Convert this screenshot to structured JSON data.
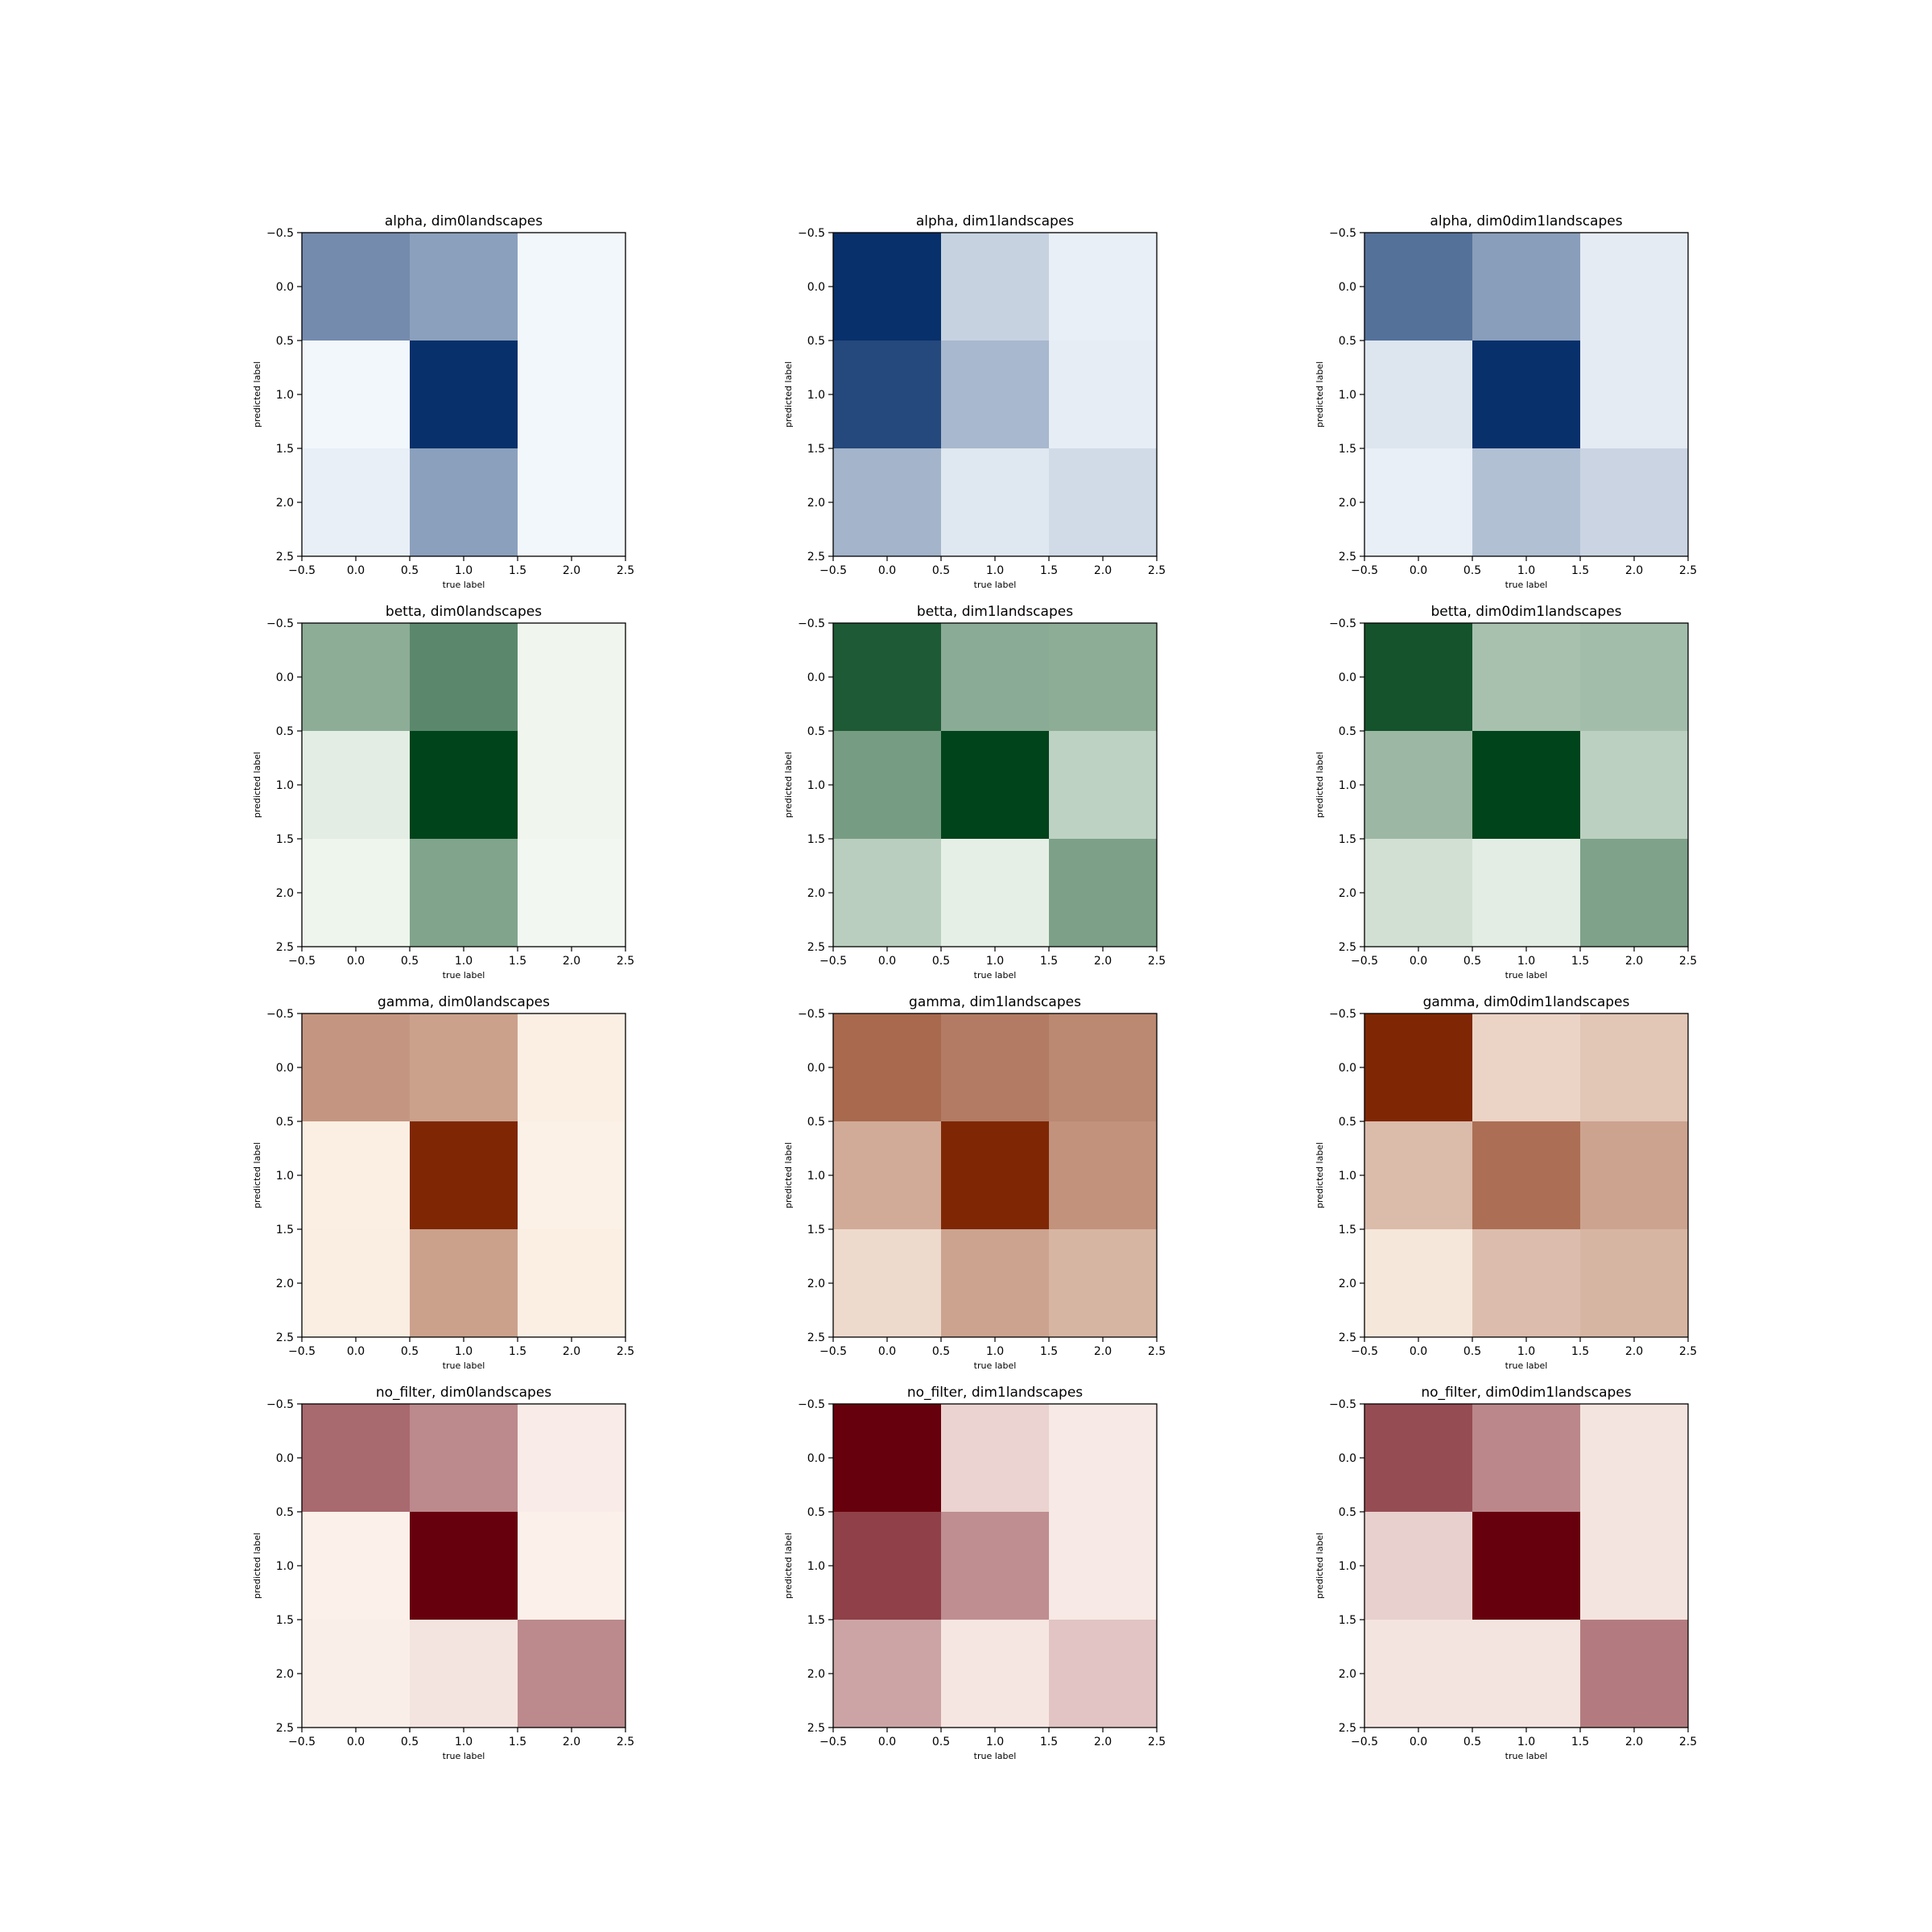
{
  "chart_data": {
    "type": "heatmap",
    "grid": false,
    "x_ticks": [
      "−0.5",
      "0.0",
      "0.5",
      "1.0",
      "1.5",
      "2.0",
      "2.5"
    ],
    "y_ticks": [
      "−0.5",
      "0.0",
      "0.5",
      "1.0",
      "1.5",
      "2.0",
      "2.5"
    ],
    "xlim": [
      -0.5,
      2.5
    ],
    "ylim": [
      2.5,
      -0.5
    ],
    "panels": [
      {
        "title": "alpha, dim0landscapes",
        "xlabel": "true label",
        "ylabel": "predicted label",
        "colormap": {
          "light": "#f7fbff",
          "dark": "#08306b"
        },
        "values": [
          [
            0.55,
            0.45,
            0.02
          ],
          [
            0.02,
            1.0,
            0.02
          ],
          [
            0.06,
            0.45,
            0.02
          ]
        ]
      },
      {
        "title": "alpha, dim1landscapes",
        "xlabel": "true label",
        "ylabel": "predicted label",
        "colormap": {
          "light": "#f7fbff",
          "dark": "#08306b"
        },
        "values": [
          [
            1.0,
            0.2,
            0.06
          ],
          [
            0.88,
            0.33,
            0.07
          ],
          [
            0.35,
            0.1,
            0.16
          ]
        ]
      },
      {
        "title": "alpha, dim0dim1landscapes",
        "xlabel": "true label",
        "ylabel": "predicted label",
        "colormap": {
          "light": "#f7fbff",
          "dark": "#08306b"
        },
        "values": [
          [
            0.68,
            0.46,
            0.08
          ],
          [
            0.11,
            1.0,
            0.08
          ],
          [
            0.06,
            0.29,
            0.19
          ]
        ]
      },
      {
        "title": "betta, dim0landscapes",
        "xlabel": "true label",
        "ylabel": "predicted label",
        "colormap": {
          "light": "#f7fcf5",
          "dark": "#00441b"
        },
        "values": [
          [
            0.43,
            0.63,
            0.03
          ],
          [
            0.08,
            1.0,
            0.03
          ],
          [
            0.04,
            0.48,
            0.02
          ]
        ]
      },
      {
        "title": "betta, dim1landscapes",
        "xlabel": "true label",
        "ylabel": "predicted label",
        "colormap": {
          "light": "#f7fcf5",
          "dark": "#00441b"
        },
        "values": [
          [
            0.88,
            0.44,
            0.43
          ],
          [
            0.52,
            1.0,
            0.23
          ],
          [
            0.25,
            0.07,
            0.5
          ]
        ]
      },
      {
        "title": "betta, dim0dim1landscapes",
        "xlabel": "true label",
        "ylabel": "predicted label",
        "colormap": {
          "light": "#f7fcf5",
          "dark": "#00441b"
        },
        "values": [
          [
            0.92,
            0.32,
            0.34
          ],
          [
            0.37,
            1.0,
            0.24
          ],
          [
            0.15,
            0.08,
            0.49
          ]
        ]
      },
      {
        "title": "gamma, dim0landscapes",
        "xlabel": "true label",
        "ylabel": "predicted label",
        "colormap": {
          "light": "#fff5eb",
          "dark": "#7f2704"
        },
        "values": [
          [
            0.46,
            0.41,
            0.03
          ],
          [
            0.03,
            1.0,
            0.02
          ],
          [
            0.04,
            0.41,
            0.03
          ]
        ]
      },
      {
        "title": "gamma, dim1landscapes",
        "xlabel": "true label",
        "ylabel": "predicted label",
        "colormap": {
          "light": "#fff5eb",
          "dark": "#7f2704"
        },
        "values": [
          [
            0.68,
            0.59,
            0.53
          ],
          [
            0.36,
            1.0,
            0.48
          ],
          [
            0.13,
            0.4,
            0.31
          ]
        ]
      },
      {
        "title": "gamma, dim0dim1landscapes",
        "xlabel": "true label",
        "ylabel": "predicted label",
        "colormap": {
          "light": "#fff5eb",
          "dark": "#7f2704"
        },
        "values": [
          [
            1.0,
            0.16,
            0.23
          ],
          [
            0.28,
            0.65,
            0.4
          ],
          [
            0.07,
            0.27,
            0.31
          ]
        ]
      },
      {
        "title": "no_filter, dim0landscapes",
        "xlabel": "true label",
        "ylabel": "predicted label",
        "colormap": {
          "light": "#fff5f0",
          "dark": "#67000d"
        },
        "values": [
          [
            0.57,
            0.44,
            0.04
          ],
          [
            0.02,
            1.0,
            0.02
          ],
          [
            0.03,
            0.07,
            0.44
          ]
        ]
      },
      {
        "title": "no_filter, dim1landscapes",
        "xlabel": "true label",
        "ylabel": "predicted label",
        "colormap": {
          "light": "#fff5f0",
          "dark": "#67000d"
        },
        "values": [
          [
            1.0,
            0.14,
            0.05
          ],
          [
            0.74,
            0.42,
            0.05
          ],
          [
            0.33,
            0.06,
            0.2
          ]
        ]
      },
      {
        "title": "no_filter, dim0dim1landscapes",
        "xlabel": "true label",
        "ylabel": "predicted label",
        "colormap": {
          "light": "#fff5f0",
          "dark": "#67000d"
        },
        "values": [
          [
            0.69,
            0.45,
            0.07
          ],
          [
            0.15,
            1.0,
            0.07
          ],
          [
            0.07,
            0.07,
            0.5
          ]
        ]
      }
    ]
  }
}
